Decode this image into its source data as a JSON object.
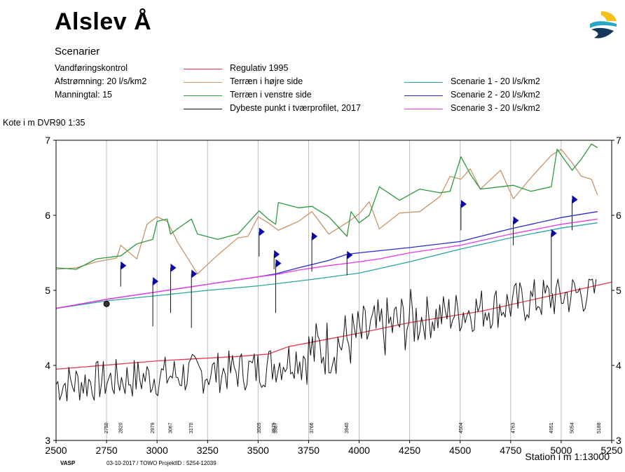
{
  "header": {
    "title": "Alslev Å",
    "subtitle": "Scenarier",
    "info_lines": [
      "Vandføringskontrol",
      "Afstrømning: 20 l/s/km2",
      "Manningtal: 15"
    ]
  },
  "legend": {
    "left_column": [
      "Regulativ 1995",
      "Terræn i højre side",
      "Terræn i venstre side",
      "Dybeste punkt i tværprofilet, 2017"
    ],
    "right_column": [
      "Scenarie 1 - 20 l/s/km2",
      "Scenarie 2 - 20 l/s/km2",
      "Scenarie 3 - 20 l/s/km2"
    ]
  },
  "footer": {
    "brand": "VASP",
    "info": "03-10-2017 / TOWO   ProjektID : 5254-12039"
  },
  "colors": {
    "regulativ": "#e8394a",
    "terraen_hojre": "#c8956a",
    "terraen_venstre": "#2e9a3e",
    "dybeste": "#111111",
    "scenarie1": "#2aa6a0",
    "scenarie2": "#2a2ad0",
    "scenarie3": "#e83ae8",
    "marker": "#0a0aa8"
  },
  "chart_data": {
    "type": "line",
    "xlabel": "Station i m  1:13000",
    "ylabel": "Kote i m DVR90 1:35",
    "xlim": [
      2500,
      5250
    ],
    "ylim": [
      3,
      7
    ],
    "xticks": [
      "2500",
      "2750",
      "3000",
      "3250",
      "3500",
      "3750",
      "4000",
      "4250",
      "4500",
      "4750",
      "5000",
      "5250"
    ],
    "yticks": [
      "3",
      "4",
      "5",
      "6",
      "7"
    ],
    "grid": "vertical",
    "profile_labels": [
      "2750",
      "2820",
      "2979",
      "3067",
      "3170",
      "3505",
      "3579",
      "3587",
      "3766",
      "3940",
      "4504",
      "4763",
      "4951",
      "5054",
      "5188"
    ],
    "profile_x": [
      2750,
      2820,
      2979,
      3067,
      3170,
      3505,
      3579,
      3587,
      3766,
      3940,
      4504,
      4763,
      4951,
      5054,
      5188
    ],
    "series": [
      {
        "name": "Regulativ 1995",
        "key": "regulativ",
        "x": [
          2500,
          3000,
          3400,
          3550,
          3650,
          4000,
          4250,
          4600,
          5000,
          5250
        ],
        "y": [
          3.95,
          4.06,
          4.12,
          4.15,
          4.25,
          4.43,
          4.57,
          4.72,
          4.96,
          5.11
        ]
      },
      {
        "name": "Terræn i højre side",
        "key": "terraen_hojre",
        "x": [
          2500,
          2600,
          2700,
          2800,
          2820,
          2900,
          2950,
          3000,
          3050,
          3100,
          3200,
          3300,
          3400,
          3450,
          3500,
          3550,
          3600,
          3700,
          3766,
          3850,
          3950,
          4000,
          4050,
          4100,
          4200,
          4300,
          4400,
          4450,
          4504,
          4550,
          4600,
          4700,
          4763,
          4850,
          4951,
          5000,
          5054,
          5100,
          5150,
          5180
        ],
        "y": [
          5.28,
          5.3,
          5.38,
          5.43,
          5.6,
          5.42,
          5.88,
          5.98,
          5.92,
          5.65,
          5.22,
          5.47,
          5.7,
          5.72,
          5.98,
          5.9,
          5.8,
          5.92,
          6.05,
          5.75,
          5.92,
          6.02,
          6.18,
          5.82,
          6.03,
          6.05,
          6.25,
          6.52,
          6.48,
          6.62,
          6.35,
          6.6,
          6.22,
          6.5,
          6.8,
          6.88,
          6.7,
          6.52,
          6.48,
          6.27
        ]
      },
      {
        "name": "Terræn i venstre side",
        "key": "terraen_venstre",
        "x": [
          2500,
          2600,
          2700,
          2820,
          2900,
          2979,
          3000,
          3050,
          3067,
          3100,
          3170,
          3200,
          3300,
          3400,
          3505,
          3550,
          3587,
          3600,
          3700,
          3766,
          3850,
          3940,
          3960,
          4000,
          4050,
          4100,
          4200,
          4300,
          4400,
          4450,
          4504,
          4550,
          4600,
          4700,
          4763,
          4850,
          4951,
          4980,
          5054,
          5100,
          5150,
          5180
        ],
        "y": [
          5.3,
          5.28,
          5.42,
          5.46,
          5.62,
          5.68,
          5.92,
          5.95,
          5.75,
          5.82,
          5.95,
          5.75,
          5.68,
          5.75,
          6.06,
          5.95,
          5.88,
          6.17,
          6.1,
          6.12,
          5.98,
          5.72,
          6.05,
          5.9,
          6.0,
          6.38,
          6.2,
          6.35,
          6.3,
          6.32,
          6.78,
          6.55,
          6.35,
          6.38,
          6.4,
          6.32,
          6.38,
          6.88,
          6.6,
          6.75,
          6.95,
          6.9
        ]
      },
      {
        "name": "Dybeste punkt i tværprofilet, 2017",
        "key": "dybeste",
        "generated": true
      },
      {
        "name": "Scenarie 1 - 20 l/s/km2",
        "key": "scenarie1",
        "x": [
          2500,
          2750,
          3000,
          3250,
          3500,
          3750,
          4000,
          4250,
          4500,
          4750,
          5000,
          5180
        ],
        "y": [
          4.76,
          4.86,
          4.93,
          5.0,
          5.06,
          5.14,
          5.23,
          5.38,
          5.55,
          5.7,
          5.83,
          5.9
        ]
      },
      {
        "name": "Scenarie 2 - 20 l/s/km2",
        "key": "scenarie2",
        "x": [
          2500,
          2750,
          3000,
          3250,
          3500,
          3587,
          3700,
          3850,
          3940,
          4000,
          4250,
          4500,
          4600,
          4750,
          5000,
          5180
        ],
        "y": [
          4.76,
          4.88,
          4.98,
          5.08,
          5.18,
          5.22,
          5.3,
          5.4,
          5.48,
          5.5,
          5.57,
          5.65,
          5.72,
          5.82,
          5.97,
          6.05
        ]
      },
      {
        "name": "Scenarie 3 - 20 l/s/km2",
        "key": "scenarie3",
        "x": [
          2500,
          2750,
          3000,
          3250,
          3500,
          3587,
          3700,
          3850,
          4000,
          4100,
          4250,
          4500,
          4750,
          5000,
          5180
        ],
        "y": [
          4.76,
          4.88,
          4.98,
          5.08,
          5.18,
          5.21,
          5.27,
          5.33,
          5.38,
          5.42,
          5.5,
          5.6,
          5.75,
          5.88,
          5.95
        ]
      }
    ],
    "profile_markers": [
      {
        "x": 2820,
        "y_top": 5.33,
        "y_bottom": 5.05
      },
      {
        "x": 2979,
        "y_top": 5.12,
        "y_bottom": 4.52
      },
      {
        "x": 3067,
        "y_top": 5.3,
        "y_bottom": 4.7
      },
      {
        "x": 3170,
        "y_top": 5.22,
        "y_bottom": 4.5
      },
      {
        "x": 3505,
        "y_top": 5.78,
        "y_bottom": 5.45
      },
      {
        "x": 3579,
        "y_top": 5.48,
        "y_bottom": 5.28
      },
      {
        "x": 3587,
        "y_top": 5.36,
        "y_bottom": 4.7
      },
      {
        "x": 3766,
        "y_top": 5.72,
        "y_bottom": 5.25
      },
      {
        "x": 3940,
        "y_top": 5.47,
        "y_bottom": 5.2
      },
      {
        "x": 4504,
        "y_top": 6.15,
        "y_bottom": 5.8
      },
      {
        "x": 4763,
        "y_top": 5.93,
        "y_bottom": 5.6
      },
      {
        "x": 4951,
        "y_top": 5.76,
        "y_bottom": 4.95
      },
      {
        "x": 5054,
        "y_top": 6.21,
        "y_bottom": 5.8
      }
    ],
    "point_marker": {
      "x": 2750,
      "y": 4.82
    }
  }
}
